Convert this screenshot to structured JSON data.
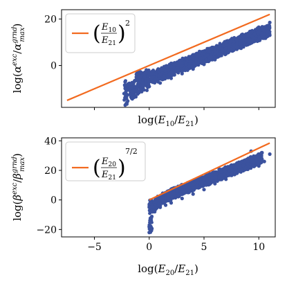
{
  "chart_data": [
    {
      "type": "scatter",
      "xlabel": "log(E10/E21)",
      "ylabel": "log(αexc/αmaxgrnd)",
      "xlim": [
        -8,
        11.5
      ],
      "ylim": [
        -18,
        24
      ],
      "xticks": [
        -5,
        0,
        5,
        10
      ],
      "show_xtick_labels": false,
      "yticks": [
        0,
        20
      ],
      "ytick_labels": [
        "0",
        "20"
      ],
      "grid": false,
      "legend_position": "top-left",
      "colors": {
        "scatter": "#3b529e",
        "line": "#f26a1f"
      },
      "legend": {
        "line_label": "(E10/E21)^2"
      },
      "reference_line": {
        "slope": 2,
        "intercept": 0,
        "x_range": [
          -7.5,
          11
        ]
      },
      "scatter_points": [
        {
          "x": -2.2,
          "y": -7.0
        },
        {
          "x": -1.8,
          "y": -10.0
        },
        {
          "x": -1.0,
          "y": -11.0
        },
        {
          "x": 0.0,
          "y": -9.0
        },
        {
          "x": 1.0,
          "y": -7.5
        },
        {
          "x": 2.0,
          "y": -5.5
        },
        {
          "x": 3.0,
          "y": -3.5
        },
        {
          "x": 4.0,
          "y": -1.5
        },
        {
          "x": 5.0,
          "y": 0.5
        },
        {
          "x": 6.0,
          "y": 2.5
        },
        {
          "x": 7.0,
          "y": 5.0
        },
        {
          "x": 8.0,
          "y": 7.0
        },
        {
          "x": 9.0,
          "y": 9.0
        },
        {
          "x": 10.0,
          "y": 11.0
        },
        {
          "x": 11.0,
          "y": 13.0
        },
        {
          "x": -1.0,
          "y": -5.0
        },
        {
          "x": 0.0,
          "y": -3.5
        },
        {
          "x": 1.0,
          "y": -2.0
        },
        {
          "x": 2.0,
          "y": -0.5
        },
        {
          "x": 3.0,
          "y": 1.0
        },
        {
          "x": 4.0,
          "y": 3.0
        },
        {
          "x": 5.0,
          "y": 5.0
        },
        {
          "x": 6.0,
          "y": 7.0
        },
        {
          "x": 7.0,
          "y": 9.0
        },
        {
          "x": 8.0,
          "y": 11.0
        },
        {
          "x": 9.0,
          "y": 13.0
        },
        {
          "x": 10.0,
          "y": 14.5
        },
        {
          "x": 11.0,
          "y": 18.5
        },
        {
          "x": 10.0,
          "y": 16.5
        },
        {
          "x": 3.5,
          "y": -2.0
        }
      ]
    },
    {
      "type": "scatter",
      "xlabel": "log(E20/E21)",
      "ylabel": "log(βexc/βmaxgrnd)",
      "xlim": [
        -8,
        11.5
      ],
      "ylim": [
        -25,
        42
      ],
      "xticks": [
        -5,
        0,
        5,
        10
      ],
      "xtick_labels": [
        "−5",
        "0",
        "5",
        "10"
      ],
      "yticks": [
        -20,
        0,
        20,
        40
      ],
      "ytick_labels": [
        "−20",
        "0",
        "20",
        "40"
      ],
      "grid": false,
      "legend_position": "top-left",
      "colors": {
        "scatter": "#3b529e",
        "line": "#f26a1f"
      },
      "legend": {
        "line_label": "(E20/E21)^7/2"
      },
      "reference_line": {
        "slope": 3.5,
        "intercept": 0,
        "x_range": [
          0,
          11
        ]
      },
      "scatter_points": [
        {
          "x": 0.0,
          "y": -22.0
        },
        {
          "x": 0.0,
          "y": -18.0
        },
        {
          "x": 0.1,
          "y": -15.0
        },
        {
          "x": 0.2,
          "y": -12.0
        },
        {
          "x": 0.5,
          "y": -8.0
        },
        {
          "x": 1.0,
          "y": -5.0
        },
        {
          "x": 1.5,
          "y": -3.5
        },
        {
          "x": 2.0,
          "y": -2.0
        },
        {
          "x": 3.0,
          "y": 1.0
        },
        {
          "x": 4.0,
          "y": 4.0
        },
        {
          "x": 5.0,
          "y": 7.0
        },
        {
          "x": 6.0,
          "y": 11.0
        },
        {
          "x": 7.0,
          "y": 14.0
        },
        {
          "x": 8.0,
          "y": 18.0
        },
        {
          "x": 9.0,
          "y": 21.0
        },
        {
          "x": 10.0,
          "y": 23.0
        },
        {
          "x": 0.0,
          "y": -5.0
        },
        {
          "x": 0.2,
          "y": 0.0
        },
        {
          "x": 1.0,
          "y": 2.0
        },
        {
          "x": 2.0,
          "y": 4.5
        },
        {
          "x": 3.0,
          "y": 7.5
        },
        {
          "x": 4.0,
          "y": 10.5
        },
        {
          "x": 5.0,
          "y": 14.0
        },
        {
          "x": 6.0,
          "y": 17.5
        },
        {
          "x": 7.0,
          "y": 21.0
        },
        {
          "x": 8.0,
          "y": 24.0
        },
        {
          "x": 9.0,
          "y": 26.5
        },
        {
          "x": 10.0,
          "y": 29.0
        },
        {
          "x": 9.3,
          "y": 33.0
        },
        {
          "x": 11.0,
          "y": 31.0
        },
        {
          "x": 10.5,
          "y": 26.0
        }
      ]
    }
  ]
}
